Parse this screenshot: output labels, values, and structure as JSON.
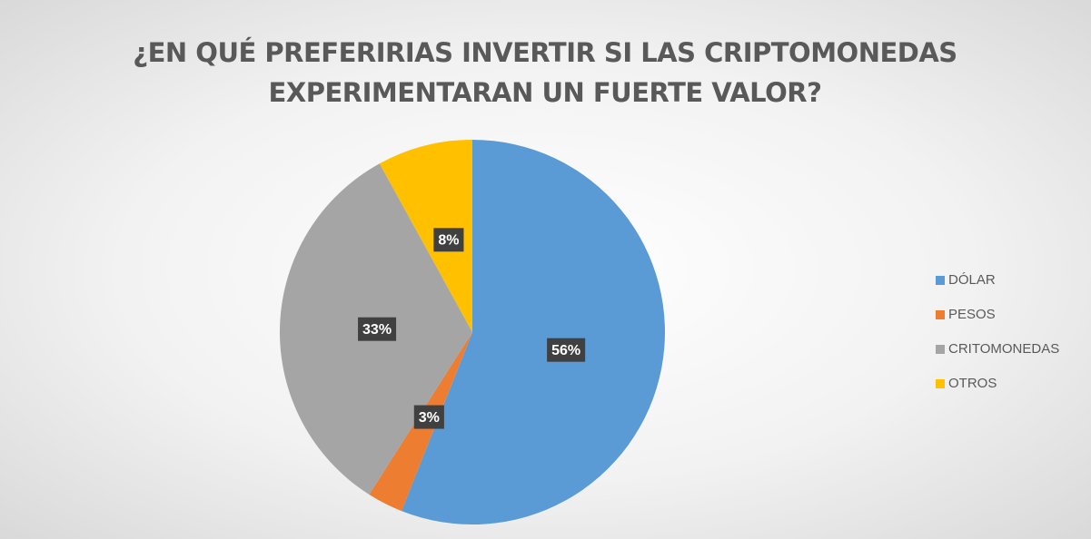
{
  "chart_data": {
    "type": "pie",
    "title": "¿EN QUÉ PREFERIRIAS INVERTIR SI LAS CRIPTOMONEDAS EXPERIMENTARAN UN FUERTE VALOR?",
    "categories": [
      "DÓLAR",
      "PESOS",
      "CRITOMONEDAS",
      "OTROS"
    ],
    "values": [
      56,
      3,
      33,
      8
    ],
    "value_labels": [
      "56%",
      "3%",
      "33%",
      "8%"
    ],
    "colors": [
      "#5b9bd5",
      "#ed7d31",
      "#a5a5a5",
      "#ffc000"
    ],
    "legend": "right"
  }
}
